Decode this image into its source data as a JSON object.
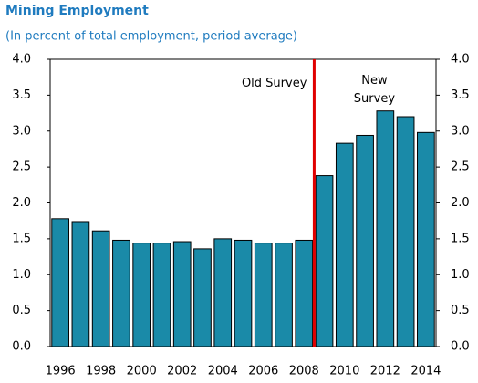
{
  "chart_data": {
    "type": "bar",
    "title": "Mining Employment",
    "subtitle": "(In percent of total employment, period average)",
    "categories": [
      "1996",
      null,
      "1998",
      null,
      "2000",
      null,
      "2002",
      null,
      "2004",
      null,
      "2006",
      null,
      "2008",
      null,
      "2010",
      null,
      "2012",
      null,
      "2014"
    ],
    "values": [
      1.78,
      1.74,
      1.61,
      1.48,
      1.44,
      1.44,
      1.46,
      1.36,
      1.5,
      1.48,
      1.44,
      1.44,
      1.48,
      2.38,
      2.83,
      2.94,
      3.28,
      3.2,
      2.98
    ],
    "color": "#1a8aa8",
    "ylim": [
      0,
      4
    ],
    "yticks": [
      {
        "value": 0,
        "label": "0.0"
      },
      {
        "value": 0.5,
        "label": "0.5"
      },
      {
        "value": 1,
        "label": "1.0"
      },
      {
        "value": 1.5,
        "label": "1.5"
      },
      {
        "value": 2,
        "label": "2.0"
      },
      {
        "value": 2.5,
        "label": "2.5"
      },
      {
        "value": 3,
        "label": "3.0"
      },
      {
        "value": 3.5,
        "label": "3.5"
      },
      {
        "value": 4,
        "label": "4.0"
      }
    ],
    "y2lim": [
      0,
      4
    ],
    "y2ticks": [
      {
        "value": 0,
        "label": "0.0"
      },
      {
        "value": 0.5,
        "label": "0.5"
      },
      {
        "value": 1,
        "label": "1.0"
      },
      {
        "value": 1.5,
        "label": "1.5"
      },
      {
        "value": 2,
        "label": "2.0"
      },
      {
        "value": 2.5,
        "label": "2.5"
      },
      {
        "value": 3,
        "label": "3.0"
      },
      {
        "value": 3.5,
        "label": "3.5"
      },
      {
        "value": 4,
        "label": "4.0"
      }
    ],
    "annotations": [
      {
        "lines": [
          "Old Survey"
        ]
      },
      {
        "lines": [
          "New",
          "Survey"
        ]
      }
    ],
    "divider_color": "#e00000",
    "grid": false
  }
}
